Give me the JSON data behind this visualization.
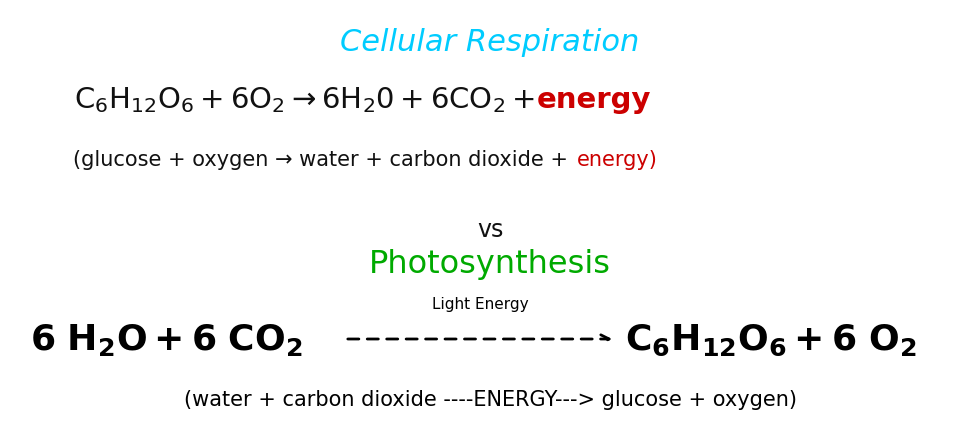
{
  "bg_color": "#ffffff",
  "cr_title": "Cellular Respiration",
  "cr_title_color": "#00ccff",
  "cr_formula_black": "$\\mathrm{C_6H_{12}O_6 + 6O_2 \\rightarrow 6H_20 + 6CO_2 + }$",
  "cr_formula_energy": "energy",
  "cr_formula_color": "#111111",
  "cr_energy_color": "#cc0000",
  "cr_word_black": "(glucose + oxygen → water + carbon dioxide + ",
  "cr_word_energy": "energy)",
  "vs_text": "vs",
  "vs_color": "#111111",
  "ps_title": "Photosynthesis",
  "ps_title_color": "#00aa00",
  "ps_left": "$\\mathbf{6\\ H_2O + 6\\ CO_2}$",
  "ps_right": "$\\mathbf{C_6H_{12}O_6 + 6\\ O_2}$",
  "ps_formula_color": "#000000",
  "light_energy": "Light Energy",
  "ps_word": "(water + carbon dioxide ----ENERGY---> glucose + oxygen)",
  "figsize": [
    9.8,
    4.31
  ],
  "dpi": 100
}
